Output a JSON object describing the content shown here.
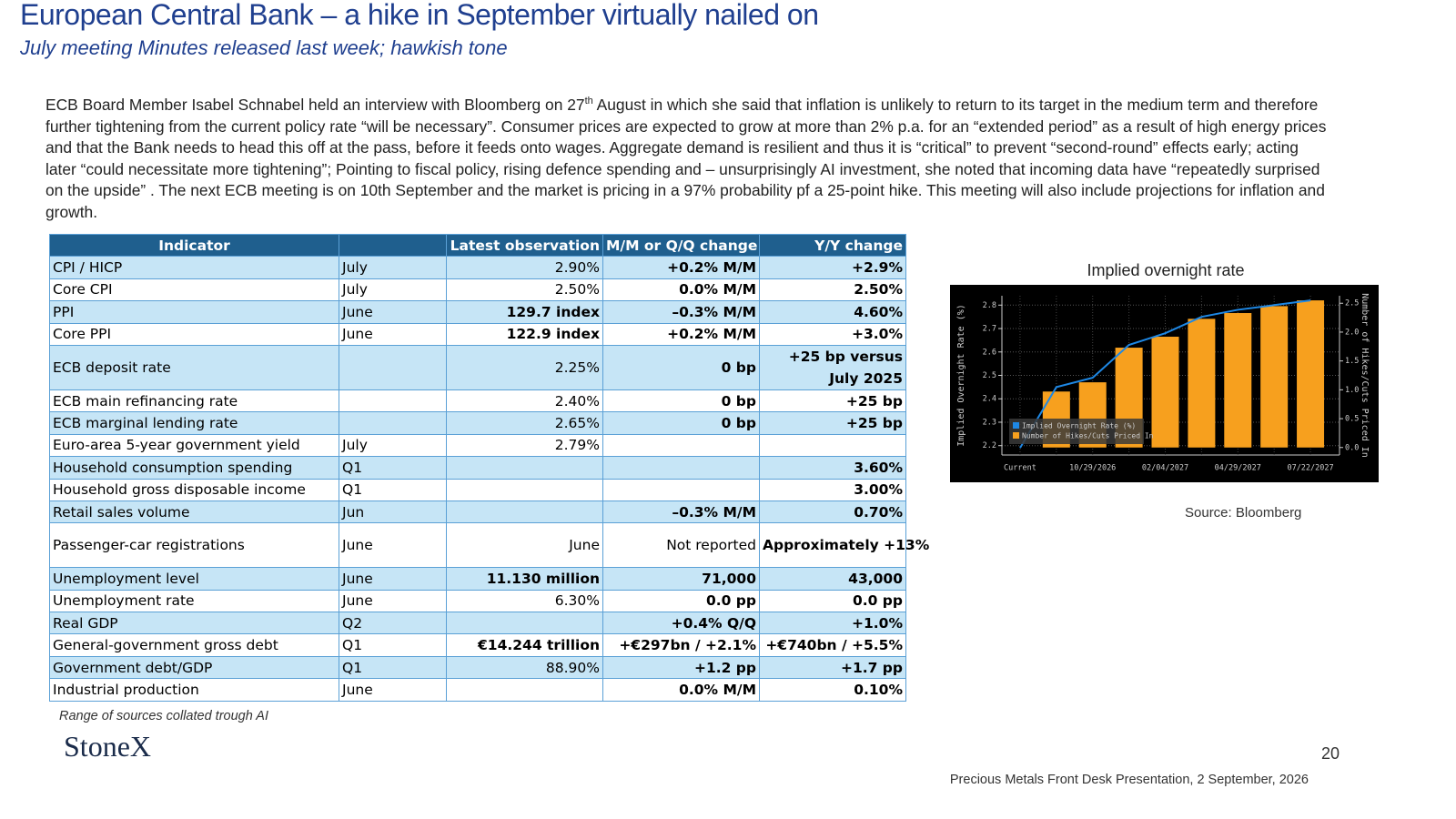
{
  "header": {
    "title": "European Central Bank – a hike in September virtually nailed on",
    "subtitle": "July meeting Minutes released last week; hawkish tone"
  },
  "body": {
    "paragraph": [
      "ECB Board Member Isabel Schnabel held an interview with Bloomberg on 27",
      "th",
      " August in which she said that inflation is unlikely to return to its target in the medium term and therefore further tightening from the current policy rate “will be necessary”.  Consumer prices are expected to grow at more than 2% p.a. for an “extended period” as a result of high energy prices and that the Bank needs to head this off at the pass, before it feeds onto wages.   Aggregate demand is resilient and thus it is “critical” to prevent “second-round” effects early; acting later “could necessitate more tightening”; Pointing to fiscal policy, rising defence spending and – unsurprisingly AI investment,  she noted that incoming data have “repeatedly surprised on the upside” .  The next ECB meeting is  on 10th September and the market is pricing in a 97% probability pf a 25-point hike.  This meeting will also include projections for inflation and growth."
    ]
  },
  "table": {
    "header": [
      "Indicator",
      "Latest observation",
      "M/M or Q/Q change",
      "Y/Y change"
    ],
    "rows": [
      [
        "CPI / HICP",
        "July",
        "2.90%",
        "+0.2% M/M",
        "+2.9%"
      ],
      [
        "Core CPI",
        "July",
        "2.50%",
        "0.0% M/M",
        "2.50%"
      ],
      [
        "PPI",
        "June",
        "129.7 index",
        "–0.3% M/M",
        "4.60%"
      ],
      [
        "Core PPI",
        "June",
        "122.9 index",
        "+0.2% M/M",
        "+3.0%"
      ],
      [
        "ECB deposit rate",
        null,
        "2.25%",
        "0 bp",
        "+25 bp versus July 2025"
      ],
      [
        "ECB main refinancing rate",
        null,
        "2.40%",
        "0 bp",
        "+25 bp"
      ],
      [
        "ECB marginal lending rate",
        null,
        "2.65%",
        "0 bp",
        "+25 bp"
      ],
      [
        "Euro-area 5-year government yield",
        "July",
        "2.79%",
        null,
        null
      ],
      [
        "Household consumption spending",
        "Q1",
        null,
        null,
        "3.60%"
      ],
      [
        "Household gross disposable income",
        "Q1",
        null,
        null,
        "3.00%"
      ],
      [
        "Retail sales volume",
        "Jun",
        null,
        "–0.3% M/M",
        "0.70%"
      ],
      [
        "Passenger-car registrations",
        "June",
        "June",
        "Not reported",
        "Approximately +13%"
      ],
      [
        "Unemployment level",
        "June",
        "11.130 million",
        "71,000",
        "43,000"
      ],
      [
        "Unemployment rate",
        "June",
        "6.30%",
        "0.0 pp",
        "0.0 pp"
      ],
      [
        "Real GDP",
        "Q2",
        null,
        "+0.4% Q/Q",
        "+1.0%"
      ],
      [
        "General-government gross debt",
        "Q1",
        "€14.244 trillion",
        "+€297bn / +2.1%",
        "+€740bn / +5.5%"
      ],
      [
        "Government debt/GDP",
        "Q1",
        "88.90%",
        "+1.2 pp",
        "+1.7 pp"
      ],
      [
        "Industrial production",
        "June",
        null,
        "0.0% M/M",
        "0.10%"
      ]
    ],
    "note": "Range of sources collated trough AI"
  },
  "chart_data": {
    "type": "bar-line",
    "title": "Implied overnight rate",
    "categories": [
      "Current",
      null,
      "10/29/2026",
      null,
      "02/04/2027",
      null,
      "04/29/2027",
      null,
      "07/22/2027"
    ],
    "series": [
      {
        "name": "Implied Overnight Rate (%)",
        "type": "line",
        "color": "#1e88e5",
        "values": [
          2.19,
          2.45,
          2.49,
          2.63,
          2.68,
          2.75,
          2.78,
          2.8,
          2.82
        ]
      },
      {
        "name": "Number of Hikes/Cuts Priced In",
        "type": "bar",
        "axis": "y2",
        "color": "#f7a01e",
        "values": [
          null,
          0.97,
          1.13,
          1.73,
          1.92,
          2.23,
          2.33,
          2.45,
          2.55
        ]
      }
    ],
    "ylabel": "Implied Overnight Rate (%)",
    "y2label": "Number of Hikes/Cuts Priced In",
    "ylim": [
      2.16,
      2.84
    ],
    "yticks": [
      2.2,
      2.3,
      2.4,
      2.5,
      2.6,
      2.7,
      2.8
    ],
    "y2lim": [
      -0.13,
      2.63
    ],
    "y2ticks": [
      {
        "value": 0,
        "label": "0.0"
      },
      0.5,
      {
        "value": 1,
        "label": "1.0"
      },
      1.5,
      {
        "value": 2,
        "label": "2.0"
      },
      2.5
    ],
    "grid": true,
    "legend": "bottom-left",
    "source": "Source: Bloomberg"
  },
  "footer": {
    "logo": "StoneX",
    "page": "20",
    "caption": "Precious Metals Front Desk Presentation, 2 September, 2026"
  }
}
